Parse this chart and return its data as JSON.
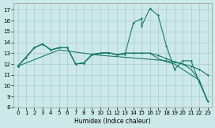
{
  "xlabel": "Humidex (Indice chaleur)",
  "bg_color": "#cce8e8",
  "grid_color": "#aacccc",
  "line_color": "#1a7a6a",
  "xlim": [
    -0.5,
    23.5
  ],
  "ylim": [
    8,
    17.6
  ],
  "yticks": [
    8,
    9,
    10,
    11,
    12,
    13,
    14,
    15,
    16,
    17
  ],
  "xticks": [
    0,
    1,
    2,
    3,
    4,
    5,
    6,
    7,
    8,
    9,
    10,
    11,
    12,
    13,
    14,
    15,
    16,
    17,
    18,
    19,
    20,
    21,
    22,
    23
  ],
  "line1": [
    [
      0,
      11.8
    ],
    [
      1,
      12.6
    ],
    [
      2,
      13.5
    ],
    [
      3,
      13.85
    ],
    [
      4,
      13.3
    ],
    [
      5,
      13.5
    ],
    [
      6,
      13.5
    ],
    [
      7,
      12.0
    ],
    [
      8,
      12.1
    ],
    [
      9,
      12.9
    ],
    [
      10,
      13.0
    ],
    [
      11,
      13.05
    ],
    [
      12,
      12.85
    ],
    [
      13,
      12.9
    ],
    [
      14,
      15.8
    ],
    [
      15,
      16.2
    ],
    [
      15,
      15.5
    ],
    [
      16,
      17.1
    ],
    [
      16,
      17.1
    ],
    [
      17,
      16.5
    ],
    [
      18,
      13.7
    ],
    [
      19,
      11.5
    ],
    [
      20,
      12.3
    ],
    [
      21,
      12.3
    ],
    [
      22,
      10.3
    ],
    [
      23,
      8.6
    ]
  ],
  "line2": [
    [
      0,
      11.8
    ],
    [
      2,
      13.5
    ],
    [
      3,
      13.85
    ],
    [
      4,
      13.3
    ],
    [
      5,
      13.5
    ],
    [
      6,
      13.5
    ],
    [
      7,
      12.0
    ],
    [
      8,
      12.1
    ],
    [
      9,
      12.85
    ],
    [
      10,
      13.0
    ],
    [
      11,
      13.05
    ],
    [
      12,
      12.85
    ],
    [
      13,
      13.0
    ],
    [
      14,
      13.0
    ],
    [
      15,
      13.0
    ],
    [
      16,
      13.0
    ],
    [
      17,
      12.8
    ],
    [
      18,
      12.5
    ],
    [
      19,
      12.2
    ],
    [
      20,
      12.0
    ],
    [
      21,
      11.8
    ],
    [
      22,
      11.5
    ],
    [
      23,
      11.0
    ]
  ],
  "line3": [
    [
      0,
      11.8
    ],
    [
      2,
      13.5
    ],
    [
      3,
      13.85
    ],
    [
      4,
      13.3
    ],
    [
      5,
      13.5
    ],
    [
      6,
      13.5
    ],
    [
      7,
      12.0
    ],
    [
      8,
      12.1
    ],
    [
      9,
      12.85
    ],
    [
      10,
      13.0
    ],
    [
      11,
      13.05
    ],
    [
      12,
      12.85
    ],
    [
      13,
      13.0
    ],
    [
      14,
      13.0
    ],
    [
      15,
      13.0
    ],
    [
      16,
      13.0
    ],
    [
      17,
      12.5
    ],
    [
      18,
      12.2
    ],
    [
      19,
      12.0
    ],
    [
      20,
      11.5
    ],
    [
      21,
      11.0
    ],
    [
      22,
      10.5
    ],
    [
      23,
      8.6
    ]
  ],
  "line4": [
    [
      0,
      11.8
    ],
    [
      5,
      13.3
    ],
    [
      10,
      12.8
    ],
    [
      15,
      12.5
    ],
    [
      18,
      12.3
    ],
    [
      20,
      12.0
    ],
    [
      21,
      11.5
    ],
    [
      22,
      10.5
    ],
    [
      23,
      8.55
    ]
  ]
}
